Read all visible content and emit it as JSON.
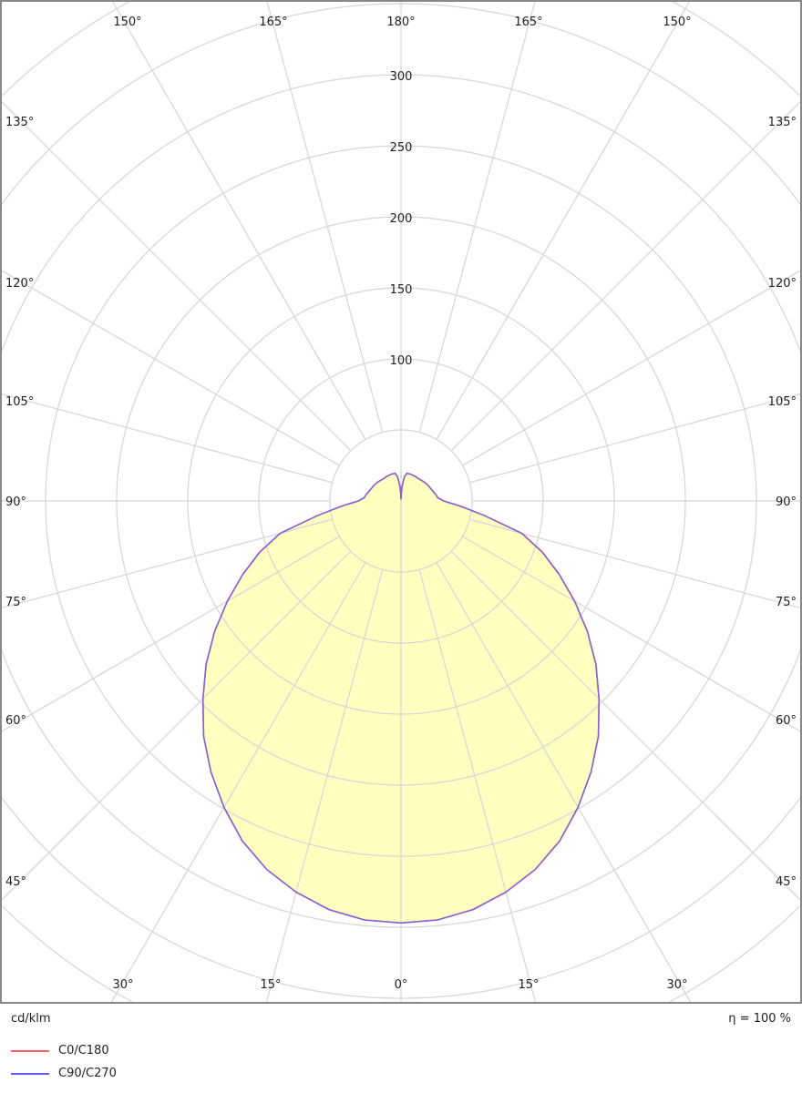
{
  "chart_data": {
    "type": "polar",
    "unit": "cd/klm",
    "efficiency": "η = 100 %",
    "radial_ticks": [
      100,
      150,
      200,
      250,
      300
    ],
    "ring_step": 50,
    "angle_step": 15,
    "angle_labels": {
      "top": [
        "150°",
        "165°",
        "180°",
        "165°",
        "150°"
      ],
      "left": [
        "135°",
        "120°",
        "105°",
        "90°",
        "75°",
        "60°",
        "45°"
      ],
      "right": [
        "135°",
        "120°",
        "105°",
        "90°",
        "75°",
        "60°",
        "45°"
      ],
      "bottom": [
        "30°",
        "15°",
        "0°",
        "15°",
        "30°"
      ]
    },
    "fill_color": "#ffffc0",
    "series": [
      {
        "name": "C0/C180",
        "color": "#ff6060"
      },
      {
        "name": "C90/C270",
        "color": "#6060ff"
      }
    ],
    "gamma": [
      0,
      5,
      10,
      15,
      20,
      25,
      30,
      35,
      40,
      45,
      50,
      55,
      60,
      65,
      70,
      75,
      80,
      85,
      90,
      95,
      100,
      110,
      120,
      130,
      140,
      150,
      160,
      168,
      172,
      176,
      178,
      180
    ],
    "intensity": [
      297,
      296,
      292,
      285,
      276,
      264,
      249,
      233,
      216,
      197,
      179,
      160,
      141,
      123,
      106,
      88,
      60,
      42,
      30,
      26,
      25,
      23,
      22,
      21,
      20,
      20,
      20,
      20,
      17,
      10,
      5,
      1
    ]
  }
}
